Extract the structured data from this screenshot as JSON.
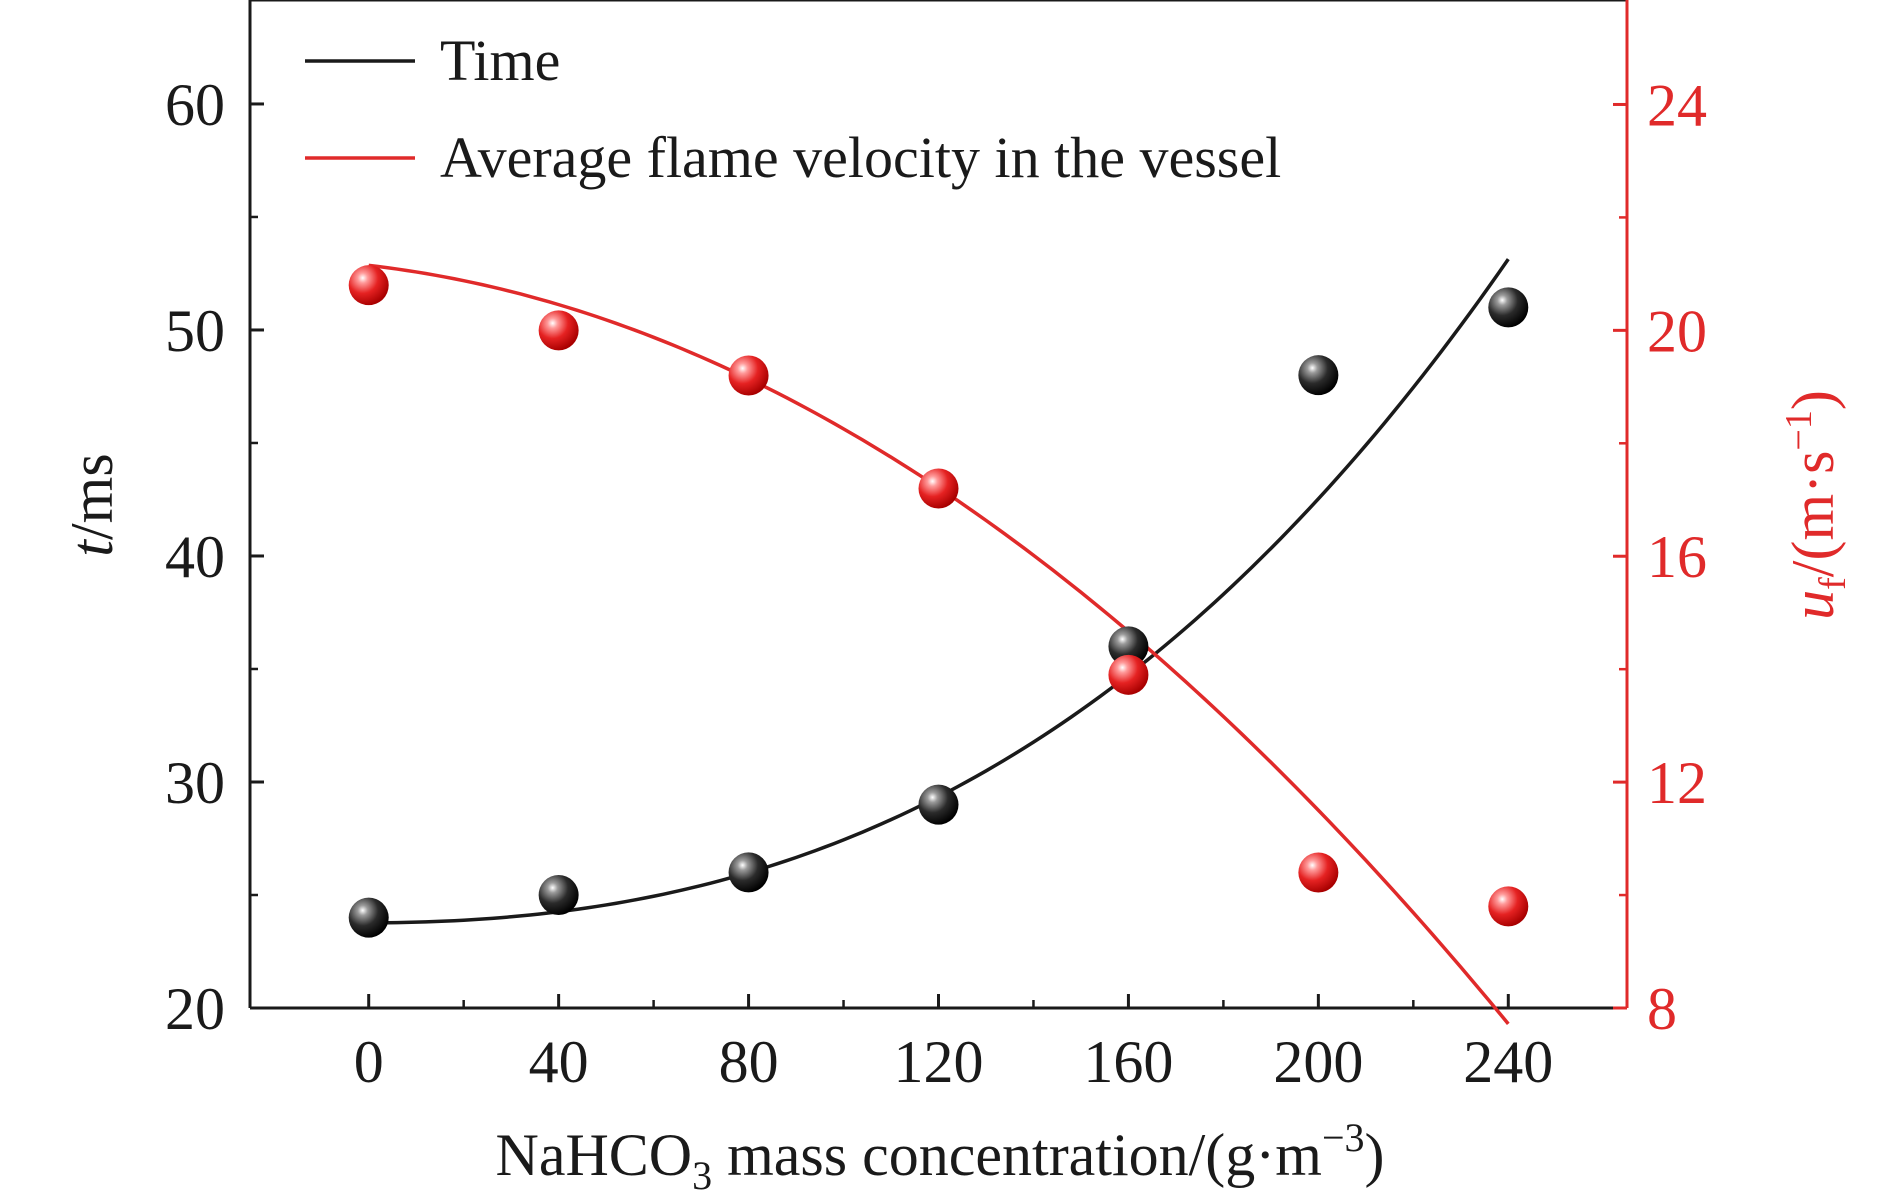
{
  "chart_data": {
    "type": "scatter",
    "x": [
      0,
      40,
      80,
      120,
      160,
      200,
      240
    ],
    "xlabel": {
      "prefix": "NaHCO",
      "sub": "3",
      "middle": " mass concentration/(g·m",
      "sup": "−3",
      "suffix": ")"
    },
    "xlim": [
      -25,
      265
    ],
    "xticks": [
      "0",
      "40",
      "80",
      "120",
      "160",
      "200",
      "240"
    ],
    "y_left": {
      "label": {
        "italic": "t",
        "rest": "/ms"
      },
      "ylim": [
        20,
        64.6
      ],
      "ticks": [
        "20",
        "30",
        "40",
        "50",
        "60"
      ],
      "color": "#1a1a1a"
    },
    "y_right": {
      "label": {
        "italic": "u",
        "sub": "f",
        "rest": "/(m·s",
        "sup": "−1",
        "end": ")"
      },
      "ylim": [
        8,
        25.85
      ],
      "ticks": [
        "8",
        "12",
        "16",
        "20",
        "24"
      ],
      "color": "#e02a2a"
    },
    "series": [
      {
        "name": "Time",
        "axis": "left",
        "color": "#1a1a1a",
        "values": [
          24,
          25,
          26,
          29,
          36,
          48,
          51
        ],
        "fit": {
          "c0": 23.77,
          "c1": 0.0,
          "c2": 0.000265,
          "c3": 1.02e-06
        }
      },
      {
        "name": "Average flame velocity in the vessel",
        "axis": "right",
        "color": "#e02a2a",
        "values": [
          20.8,
          20.0,
          19.2,
          17.2,
          13.9,
          10.4,
          9.8
        ],
        "fit": {
          "c0": 21.15,
          "c1": -0.00964,
          "c2": -0.000193,
          "c3": 0.0
        }
      }
    ],
    "legend": {
      "position": "top-left"
    }
  }
}
